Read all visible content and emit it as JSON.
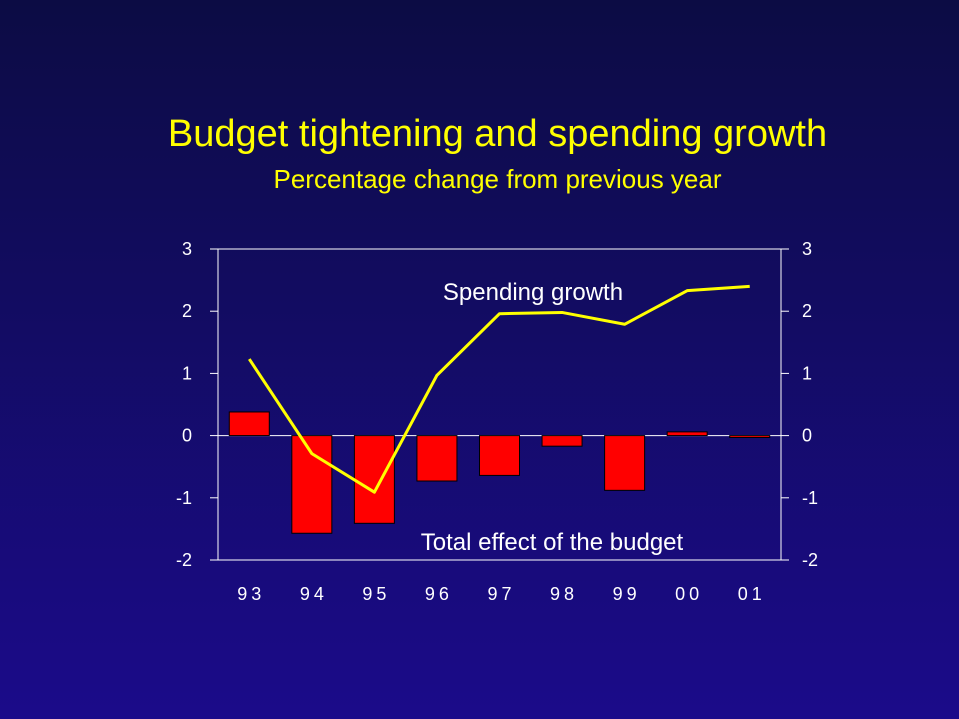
{
  "chart_data": {
    "type": "bar",
    "title": "Budget tightening and spending growth",
    "subtitle": "Percentage change from previous year",
    "categories": [
      "93",
      "94",
      "95",
      "96",
      "97",
      "98",
      "99",
      "00",
      "01"
    ],
    "series": [
      {
        "name": "Total effect of the budget",
        "type": "bar",
        "color": "#ff0000",
        "values": [
          0.38,
          -1.57,
          -1.41,
          -0.73,
          -0.64,
          -0.17,
          -0.88,
          0.06,
          -0.03
        ]
      },
      {
        "name": "Spending growth",
        "type": "line",
        "color": "#ffff00",
        "values": [
          1.23,
          -0.29,
          -0.91,
          0.97,
          1.96,
          1.98,
          1.79,
          2.33,
          2.4
        ]
      }
    ],
    "ylim": [
      -2,
      3
    ],
    "yticks": [
      "3",
      "2",
      "1",
      "0",
      "-1",
      "-2"
    ],
    "y2ticks": [
      "3",
      "2",
      "1",
      "0",
      "-1",
      "-2"
    ],
    "annotations": {
      "spending_growth": "Spending growth",
      "budget_effect": "Total effect of the budget"
    }
  }
}
